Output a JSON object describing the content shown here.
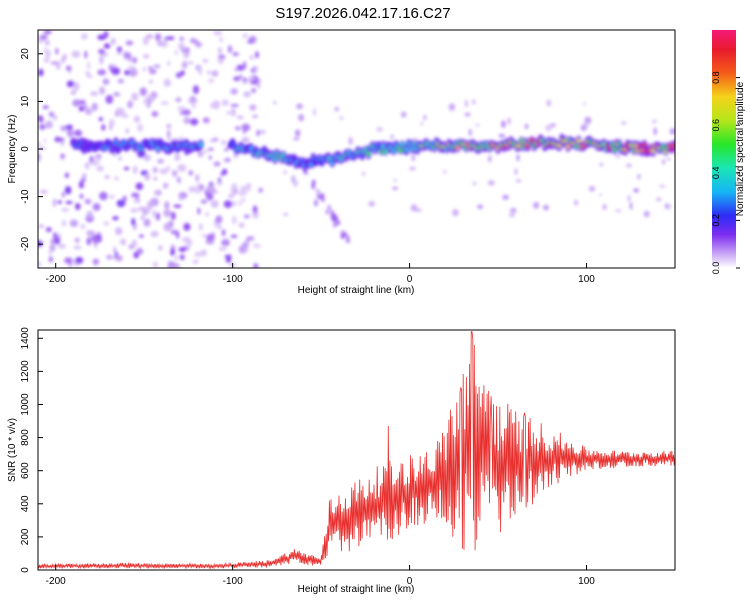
{
  "title": "S197.2026.042.17.16.C27",
  "chart_data": [
    {
      "type": "heatmap",
      "xlabel": "Height of straight line (km)",
      "ylabel": "Frequency (Hz)",
      "xlim": [
        -210,
        150
      ],
      "ylim": [
        -25,
        25
      ],
      "x_ticks": [
        -200,
        -100,
        0,
        100
      ],
      "x_tick_labels": [
        "-200",
        "-100",
        "0",
        "100"
      ],
      "y_ticks": [
        -20,
        -10,
        0,
        10,
        20
      ],
      "y_tick_labels": [
        "-20",
        "-10",
        "0",
        "10",
        "20"
      ],
      "colorbar": {
        "label": "Normalized spectral amplitude",
        "range": [
          0,
          1
        ],
        "ticks": [
          0,
          0.2,
          0.4,
          0.6,
          0.8
        ],
        "tick_labels": [
          "0.0",
          "0.2",
          "0.4",
          "0.6",
          "0.8"
        ],
        "colormap": "rainbow (white-violet-blue-cyan-green-yellow-red-magenta)"
      },
      "features": {
        "dominant_line": [
          {
            "x": -180,
            "freq": 0.8,
            "amp": 0.25
          },
          {
            "x": -140,
            "freq": 0.5,
            "amp": 0.3
          },
          {
            "x": -100,
            "freq": 0.6,
            "amp": 0.35
          },
          {
            "x": -80,
            "freq": -1.0,
            "amp": 0.45
          },
          {
            "x": -60,
            "freq": -3.0,
            "amp": 0.3
          },
          {
            "x": -40,
            "freq": -2.0,
            "amp": 0.4
          },
          {
            "x": -20,
            "freq": 0.0,
            "amp": 0.45
          },
          {
            "x": 0,
            "freq": 0.5,
            "amp": 0.5
          },
          {
            "x": 20,
            "freq": 0.8,
            "amp": 0.6
          },
          {
            "x": 40,
            "freq": 0.7,
            "amp": 0.8
          },
          {
            "x": 60,
            "freq": 1.0,
            "amp": 0.7
          },
          {
            "x": 80,
            "freq": 1.5,
            "amp": 0.8
          },
          {
            "x": 100,
            "freq": 1.0,
            "amp": 0.75
          },
          {
            "x": 120,
            "freq": 0.3,
            "amp": 0.85
          },
          {
            "x": 150,
            "freq": 0.0,
            "amp": 0.95
          }
        ],
        "noise_region": [
          -210,
          -85
        ]
      }
    },
    {
      "type": "line",
      "xlabel": "Height of straight line (km)",
      "ylabel": "SNR (10 * v/v)",
      "xlim": [
        -210,
        150
      ],
      "ylim": [
        0,
        1450
      ],
      "x_ticks": [
        -200,
        -100,
        0,
        100
      ],
      "x_tick_labels": [
        "-200",
        "-100",
        "0",
        "100"
      ],
      "y_ticks": [
        0,
        200,
        400,
        600,
        800,
        1000,
        1200,
        1400
      ],
      "y_tick_labels": [
        "0",
        "200",
        "400",
        "600",
        "800",
        "1000",
        "1200",
        "1400"
      ],
      "series": [
        {
          "name": "SNR",
          "color": "#e8302e",
          "envelope": [
            {
              "x": -210,
              "low": 10,
              "high": 35
            },
            {
              "x": -160,
              "low": 10,
              "high": 45
            },
            {
              "x": -110,
              "low": 10,
              "high": 35
            },
            {
              "x": -80,
              "low": 15,
              "high": 60
            },
            {
              "x": -65,
              "low": 40,
              "high": 130
            },
            {
              "x": -50,
              "low": 10,
              "high": 80
            },
            {
              "x": -45,
              "low": 80,
              "high": 450
            },
            {
              "x": -30,
              "low": 120,
              "high": 550
            },
            {
              "x": -15,
              "low": 150,
              "high": 650
            },
            {
              "x": 0,
              "low": 250,
              "high": 700
            },
            {
              "x": 15,
              "low": 300,
              "high": 760
            },
            {
              "x": 25,
              "low": 100,
              "high": 1100
            },
            {
              "x": 35,
              "low": 80,
              "high": 1440
            },
            {
              "x": 50,
              "low": 200,
              "high": 1050
            },
            {
              "x": 65,
              "low": 350,
              "high": 950
            },
            {
              "x": 80,
              "low": 500,
              "high": 860
            },
            {
              "x": 100,
              "low": 600,
              "high": 740
            },
            {
              "x": 120,
              "low": 620,
              "high": 720
            },
            {
              "x": 150,
              "low": 630,
              "high": 720
            }
          ],
          "peaks": [
            {
              "x": 35,
              "y": 1440
            },
            {
              "x": 29,
              "y": 1100
            },
            {
              "x": 46,
              "y": 1050
            },
            {
              "x": -12,
              "y": 870
            },
            {
              "x": 65,
              "y": 950
            }
          ]
        }
      ]
    }
  ]
}
